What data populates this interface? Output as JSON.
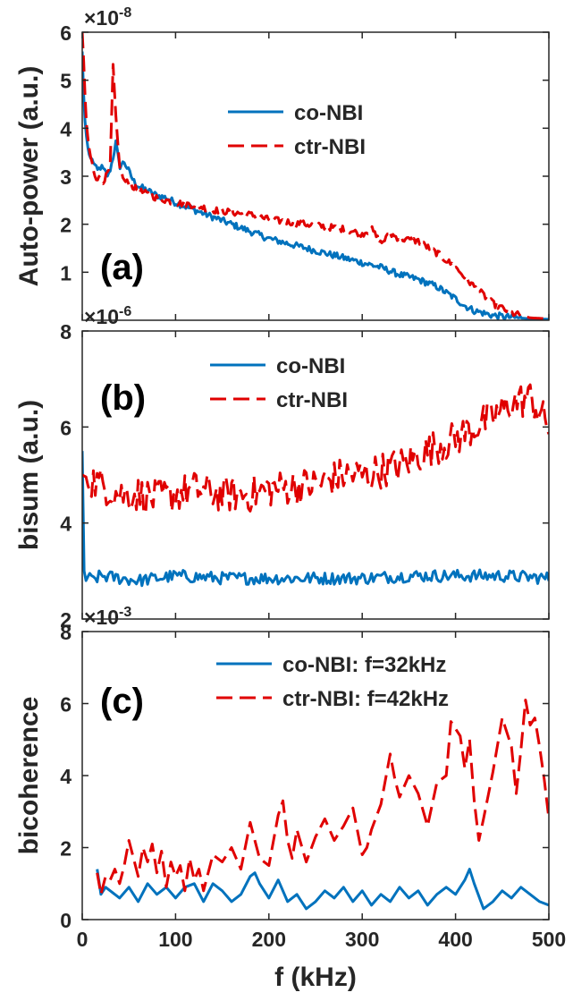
{
  "chart_data": [
    {
      "type": "line",
      "panel_label": "(a)",
      "ylabel": "Auto-power (a.u.)",
      "y_exponent": "×10",
      "y_exponent_power": "-8",
      "xlim": [
        0,
        500
      ],
      "ylim": [
        0,
        6
      ],
      "xticks": [
        0,
        100,
        200,
        300,
        400,
        500
      ],
      "yticks": [
        1,
        2,
        3,
        4,
        5,
        6
      ],
      "ytick_labels": [
        "1",
        "2",
        "3",
        "4",
        "5",
        "6"
      ],
      "show_x_tick_labels": false,
      "legend": "top-right",
      "series": [
        {
          "name": "co-NBI",
          "color": "#0072BD",
          "dash": "solid",
          "x": [
            0,
            2,
            4,
            6,
            8,
            12,
            16,
            20,
            24,
            28,
            32,
            36,
            40,
            45,
            50,
            55,
            60,
            70,
            80,
            90,
            100,
            120,
            140,
            160,
            180,
            200,
            220,
            240,
            260,
            280,
            300,
            320,
            340,
            360,
            380,
            400,
            410,
            420,
            440,
            460,
            480,
            500
          ],
          "y": [
            5.6,
            4.4,
            3.9,
            3.6,
            3.4,
            3.3,
            3.1,
            3.2,
            3.1,
            3.0,
            3.3,
            3.7,
            3.2,
            3.3,
            3.1,
            2.9,
            2.8,
            2.7,
            2.6,
            2.55,
            2.45,
            2.3,
            2.15,
            2.0,
            1.85,
            1.7,
            1.6,
            1.5,
            1.4,
            1.3,
            1.2,
            1.1,
            0.95,
            0.85,
            0.7,
            0.45,
            0.3,
            0.2,
            0.1,
            0.06,
            0.03,
            0.02
          ]
        },
        {
          "name": "ctr-NBI",
          "color": "#E00000",
          "dash": "dashed",
          "x": [
            0,
            2,
            4,
            6,
            8,
            10,
            14,
            18,
            22,
            26,
            30,
            33,
            36,
            40,
            45,
            50,
            60,
            80,
            100,
            120,
            140,
            160,
            180,
            200,
            220,
            240,
            260,
            280,
            300,
            310,
            320,
            330,
            340,
            360,
            380,
            400,
            420,
            440,
            460,
            480,
            500
          ],
          "y": [
            6.0,
            5.2,
            4.2,
            3.8,
            3.5,
            3.3,
            3.0,
            2.95,
            2.9,
            3.0,
            3.2,
            5.3,
            4.2,
            3.2,
            2.9,
            2.85,
            2.7,
            2.55,
            2.45,
            2.4,
            2.3,
            2.25,
            2.2,
            2.1,
            2.05,
            2.0,
            1.95,
            1.9,
            1.8,
            1.9,
            1.6,
            1.8,
            1.7,
            1.65,
            1.4,
            1.1,
            0.7,
            0.35,
            0.15,
            0.05,
            0.03
          ]
        }
      ]
    },
    {
      "type": "line",
      "panel_label": "(b)",
      "ylabel": "bisum (a.u.)",
      "y_exponent": "×10",
      "y_exponent_power": "-6",
      "xlim": [
        0,
        500
      ],
      "ylim": [
        2,
        8
      ],
      "xticks": [
        0,
        100,
        200,
        300,
        400,
        500
      ],
      "yticks": [
        2,
        4,
        6,
        8
      ],
      "ytick_labels": [
        "2",
        "4",
        "6",
        "8"
      ],
      "show_x_tick_labels": false,
      "legend": "top-left",
      "series": [
        {
          "name": "co-NBI",
          "color": "#0072BD",
          "dash": "solid",
          "x": [
            0,
            1,
            2,
            3,
            4,
            6,
            10,
            20,
            40,
            60,
            80,
            100,
            150,
            200,
            250,
            300,
            350,
            400,
            450,
            500
          ],
          "y": [
            5.5,
            4.2,
            3.0,
            2.85,
            2.8,
            2.9,
            2.8,
            2.9,
            2.85,
            2.8,
            2.85,
            2.9,
            2.85,
            2.85,
            2.85,
            2.85,
            2.9,
            2.9,
            2.9,
            2.85
          ],
          "noise": 0.13
        },
        {
          "name": "ctr-NBI",
          "color": "#E00000",
          "dash": "dashed",
          "x": [
            0,
            20,
            40,
            60,
            80,
            100,
            120,
            150,
            180,
            200,
            220,
            250,
            280,
            300,
            320,
            340,
            360,
            380,
            400,
            420,
            440,
            460,
            480,
            500
          ],
          "y": [
            5.0,
            4.8,
            4.6,
            4.6,
            4.5,
            4.6,
            4.7,
            4.6,
            4.6,
            4.7,
            4.75,
            4.8,
            5.0,
            5.0,
            5.1,
            5.2,
            5.4,
            5.6,
            5.75,
            6.0,
            6.2,
            6.5,
            6.6,
            6.0
          ],
          "noise": 0.38
        }
      ]
    },
    {
      "type": "line",
      "panel_label": "(c)",
      "ylabel": "bicoherence",
      "xlabel": "f (kHz)",
      "y_exponent": "×10",
      "y_exponent_power": "-3",
      "xlim": [
        0,
        500
      ],
      "ylim": [
        0,
        8
      ],
      "xticks": [
        0,
        100,
        200,
        300,
        400,
        500
      ],
      "xtick_labels": [
        "0",
        "100",
        "200",
        "300",
        "400",
        "500"
      ],
      "yticks": [
        0,
        2,
        4,
        6,
        8
      ],
      "ytick_labels": [
        "0",
        "2",
        "4",
        "6",
        "8"
      ],
      "show_x_tick_labels": true,
      "legend": "top-right",
      "series": [
        {
          "name": "co-NBI: f=32kHz",
          "color": "#0072BD",
          "dash": "solid",
          "x": [
            16,
            20,
            25,
            30,
            40,
            50,
            60,
            70,
            80,
            90,
            100,
            110,
            120,
            130,
            140,
            150,
            160,
            170,
            180,
            185,
            190,
            200,
            210,
            220,
            230,
            240,
            250,
            260,
            270,
            280,
            290,
            300,
            310,
            320,
            330,
            340,
            350,
            360,
            370,
            380,
            390,
            400,
            410,
            415,
            420,
            430,
            440,
            450,
            460,
            470,
            480,
            490,
            500
          ],
          "y": [
            1.4,
            0.7,
            0.9,
            0.8,
            0.6,
            0.9,
            0.5,
            1.0,
            0.7,
            0.9,
            0.6,
            0.9,
            1.0,
            0.5,
            1.0,
            0.8,
            0.5,
            0.7,
            1.2,
            1.3,
            1.0,
            0.6,
            1.1,
            0.5,
            0.7,
            0.3,
            0.5,
            0.8,
            0.6,
            0.9,
            0.5,
            0.8,
            0.4,
            0.7,
            0.5,
            0.9,
            0.6,
            0.8,
            0.4,
            0.7,
            0.9,
            0.7,
            1.1,
            1.4,
            1.0,
            0.3,
            0.5,
            0.8,
            0.6,
            0.9,
            0.7,
            0.5,
            0.4
          ]
        },
        {
          "name": "ctr-NBI: f=42kHz",
          "color": "#E00000",
          "dash": "dashed",
          "x": [
            16,
            20,
            25,
            30,
            35,
            40,
            45,
            50,
            55,
            60,
            65,
            70,
            75,
            80,
            85,
            90,
            95,
            100,
            105,
            110,
            115,
            120,
            125,
            130,
            135,
            140,
            150,
            160,
            170,
            180,
            185,
            190,
            200,
            210,
            215,
            220,
            225,
            230,
            240,
            250,
            260,
            270,
            280,
            290,
            300,
            305,
            310,
            320,
            330,
            335,
            340,
            350,
            360,
            370,
            380,
            390,
            395,
            400,
            405,
            410,
            415,
            420,
            425,
            430,
            440,
            450,
            460,
            465,
            470,
            475,
            480,
            485,
            490,
            495,
            500
          ],
          "y": [
            1.3,
            0.7,
            1.2,
            1.1,
            1.4,
            1.0,
            1.5,
            2.2,
            1.7,
            1.2,
            2.0,
            1.6,
            2.1,
            1.3,
            1.9,
            0.9,
            1.6,
            1.2,
            1.5,
            0.8,
            1.7,
            1.1,
            1.4,
            0.8,
            1.3,
            1.8,
            1.6,
            2.0,
            1.4,
            2.7,
            2.2,
            1.7,
            1.5,
            2.9,
            3.3,
            2.2,
            1.7,
            2.5,
            1.6,
            2.3,
            2.8,
            2.2,
            2.6,
            3.1,
            1.8,
            2.0,
            2.5,
            3.2,
            4.6,
            3.9,
            3.4,
            4.0,
            3.5,
            2.6,
            3.8,
            4.0,
            5.5,
            5.3,
            5.1,
            4.2,
            5.0,
            3.3,
            2.2,
            2.8,
            4.1,
            5.6,
            4.8,
            3.5,
            4.7,
            6.1,
            5.4,
            5.6,
            4.8,
            3.9,
            2.8
          ]
        }
      ]
    }
  ]
}
